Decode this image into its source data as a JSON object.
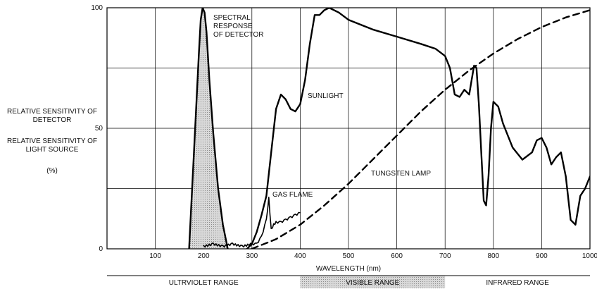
{
  "chart_data": {
    "type": "line",
    "xlabel": "WAVELENGTH (nm)",
    "xlim": [
      0,
      1000
    ],
    "ylim": [
      0,
      100
    ],
    "x_ticks": [
      100,
      200,
      300,
      400,
      500,
      600,
      700,
      800,
      900,
      1000
    ],
    "y_ticks": [
      0,
      50,
      100
    ],
    "ylabel_detector": "RELATIVE SENSITIVITY OF DETECTOR",
    "ylabel_source": "RELATIVE SENSITIVITY OF LIGHT SOURCE",
    "yunit": "(%)",
    "grid": true,
    "ranges": [
      {
        "label": "ULTRVIOLET RANGE",
        "from": 0,
        "to": 400,
        "shaded": false
      },
      {
        "label": "VISIBLE RANGE",
        "from": 400,
        "to": 700,
        "shaded": true
      },
      {
        "label": "INFRARED RANGE",
        "from": 700,
        "to": 1000,
        "shaded": false
      }
    ],
    "series": [
      {
        "name": "SPECTRAL RESPONSE OF DETECTOR",
        "style": "solid-filled",
        "x": [
          170,
          180,
          190,
          194,
          198,
          202,
          206,
          212,
          220,
          230,
          240,
          250
        ],
        "y": [
          0,
          40,
          80,
          95,
          100,
          98,
          90,
          70,
          48,
          25,
          10,
          0
        ]
      },
      {
        "name": "SUNLIGHT",
        "style": "solid",
        "x": [
          290,
          300,
          310,
          320,
          330,
          340,
          350,
          360,
          370,
          380,
          390,
          400,
          410,
          420,
          430,
          440,
          450,
          460,
          480,
          500,
          550,
          600,
          650,
          680,
          700,
          710,
          720,
          730,
          740,
          750,
          755,
          760,
          765,
          770,
          775,
          780,
          785,
          790,
          795,
          800,
          810,
          820,
          840,
          860,
          880,
          890,
          900,
          910,
          920,
          930,
          940,
          950,
          960,
          970,
          980,
          990,
          1000
        ],
        "y": [
          0,
          2,
          7,
          14,
          22,
          40,
          58,
          64,
          62,
          58,
          57,
          60,
          70,
          85,
          97,
          97,
          99,
          100,
          98,
          95,
          91,
          88,
          85,
          83,
          80,
          75,
          64,
          63,
          66,
          64,
          70,
          76,
          75,
          60,
          40,
          20,
          18,
          30,
          50,
          61,
          59,
          52,
          42,
          37,
          40,
          45,
          46,
          42,
          35,
          38,
          40,
          30,
          12,
          10,
          22,
          25,
          30
        ]
      },
      {
        "name": "TUNGSTEN LAMP",
        "style": "dashed",
        "x": [
          300,
          350,
          400,
          450,
          500,
          550,
          600,
          650,
          700,
          750,
          800,
          850,
          900,
          950,
          1000
        ],
        "y": [
          0,
          4,
          10,
          18,
          27,
          37,
          47,
          57,
          66,
          74,
          81,
          87,
          92,
          96,
          99
        ]
      },
      {
        "name": "GAS FLAME",
        "style": "solid-noisy",
        "x": [
          200,
          220,
          240,
          260,
          280,
          300,
          310,
          320,
          330,
          335,
          340,
          345,
          350,
          360,
          370,
          380,
          390,
          400
        ],
        "y": [
          1,
          2,
          1,
          2,
          1,
          2,
          2,
          5,
          12,
          21,
          8,
          10,
          11,
          11,
          12,
          13,
          14,
          15
        ]
      }
    ],
    "annotations": [
      {
        "text_lines": [
          "SPECTRAL",
          "RESPONSE",
          "OF DETECTOR"
        ]
      },
      {
        "text_lines": [
          "SUNLIGHT"
        ]
      },
      {
        "text_lines": [
          "TUNGSTEN LAMP"
        ]
      },
      {
        "text_lines": [
          "GAS FLAME"
        ]
      }
    ]
  }
}
